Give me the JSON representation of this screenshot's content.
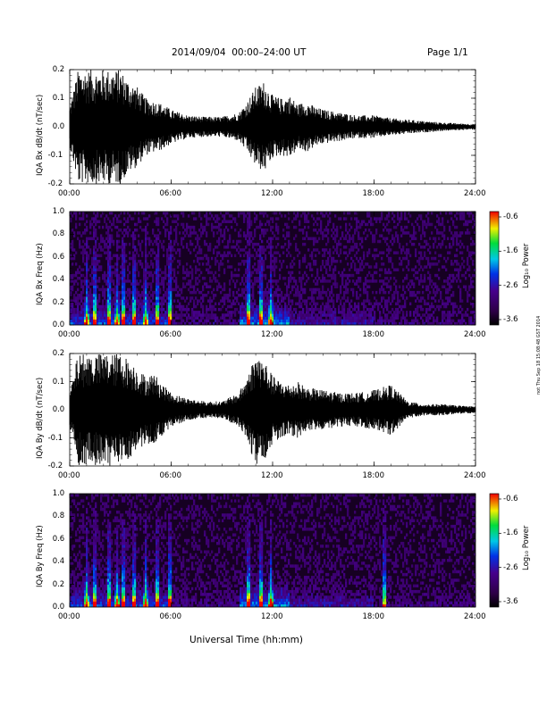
{
  "header": {
    "title": "2014/09/04  00:00–24:00 UT",
    "page": "Page 1/1"
  },
  "stamp": "not Thu Sep 18 15:08:48 GST 2014",
  "xlabel": "Universal Time (hh:mm)",
  "colorbar": {
    "title": "Log₁₀ Power",
    "ticks": [
      "-0.6",
      "-1.6",
      "-2.6",
      "-3.6"
    ]
  },
  "chart_data": [
    {
      "type": "line",
      "ylabel": "IQA Bx dB/dt (nT/sec)",
      "xlim": [
        0,
        24
      ],
      "ylim": [
        -0.2,
        0.2
      ],
      "xticks": [
        "00:00",
        "06:00",
        "12:00",
        "18:00",
        "24:00"
      ],
      "yticks": [
        "0.2",
        "0.1",
        "0.0",
        "-0.1",
        "-0.2"
      ],
      "envelope": {
        "x_hours": [
          0,
          0.5,
          1,
          1.5,
          2,
          2.5,
          3,
          3.5,
          4,
          4.5,
          5,
          5.5,
          6,
          7,
          8,
          9,
          10,
          10.5,
          11,
          11.5,
          12,
          12.5,
          13,
          13.5,
          14,
          14.5,
          15,
          16,
          17,
          18,
          19,
          20,
          21,
          22,
          23,
          24
        ],
        "amplitude": [
          0.07,
          0.2,
          0.2,
          0.2,
          0.2,
          0.2,
          0.2,
          0.16,
          0.14,
          0.1,
          0.09,
          0.08,
          0.06,
          0.04,
          0.035,
          0.035,
          0.05,
          0.09,
          0.14,
          0.16,
          0.11,
          0.1,
          0.11,
          0.08,
          0.09,
          0.07,
          0.06,
          0.05,
          0.04,
          0.04,
          0.03,
          0.025,
          0.02,
          0.015,
          0.012,
          0.01
        ]
      }
    },
    {
      "type": "heatmap",
      "ylabel": "IQA Bx Freq (Hz)",
      "xlim": [
        0,
        24
      ],
      "ylim": [
        0,
        1.0
      ],
      "zlim": [
        -3.6,
        -0.6
      ],
      "xticks": [
        "00:00",
        "06:00",
        "12:00",
        "18:00",
        "24:00"
      ],
      "yticks": [
        "1.0",
        "0.8",
        "0.6",
        "0.4",
        "0.2",
        "0.0"
      ],
      "bursts_hours": [
        1.0,
        1.5,
        2.3,
        2.8,
        3.2,
        3.8,
        4.5,
        5.2,
        5.9,
        10.6,
        11.3,
        11.9
      ]
    },
    {
      "type": "line",
      "ylabel": "IQA By dB/dt (nT/sec)",
      "xlim": [
        0,
        24
      ],
      "ylim": [
        -0.2,
        0.2
      ],
      "xticks": [
        "00:00",
        "06:00",
        "12:00",
        "18:00",
        "24:00"
      ],
      "yticks": [
        "0.2",
        "0.1",
        "0.0",
        "-0.1",
        "-0.2"
      ],
      "envelope": {
        "x_hours": [
          0,
          0.5,
          1,
          1.5,
          2,
          2.5,
          3,
          3.5,
          4,
          4.5,
          5,
          5.5,
          6,
          7,
          8,
          9,
          10,
          10.5,
          11,
          11.5,
          12,
          12.5,
          13,
          13.5,
          14,
          15,
          16,
          17,
          18,
          19,
          20,
          21,
          22,
          23,
          24
        ],
        "amplitude": [
          0.06,
          0.2,
          0.2,
          0.2,
          0.2,
          0.2,
          0.2,
          0.18,
          0.15,
          0.12,
          0.13,
          0.09,
          0.06,
          0.04,
          0.03,
          0.03,
          0.06,
          0.12,
          0.2,
          0.18,
          0.12,
          0.1,
          0.09,
          0.1,
          0.08,
          0.07,
          0.06,
          0.06,
          0.07,
          0.09,
          0.03,
          0.02,
          0.02,
          0.015,
          0.012
        ]
      }
    },
    {
      "type": "heatmap",
      "ylabel": "IQA By Freq (Hz)",
      "xlim": [
        0,
        24
      ],
      "ylim": [
        0,
        1.0
      ],
      "zlim": [
        -3.6,
        -0.6
      ],
      "xticks": [
        "00:00",
        "06:00",
        "12:00",
        "18:00",
        "24:00"
      ],
      "yticks": [
        "1.0",
        "0.8",
        "0.6",
        "0.4",
        "0.2",
        "0.0"
      ],
      "bursts_hours": [
        1.0,
        1.5,
        2.3,
        2.8,
        3.2,
        3.8,
        4.5,
        5.2,
        5.9,
        10.6,
        11.3,
        11.9,
        18.6
      ]
    }
  ]
}
